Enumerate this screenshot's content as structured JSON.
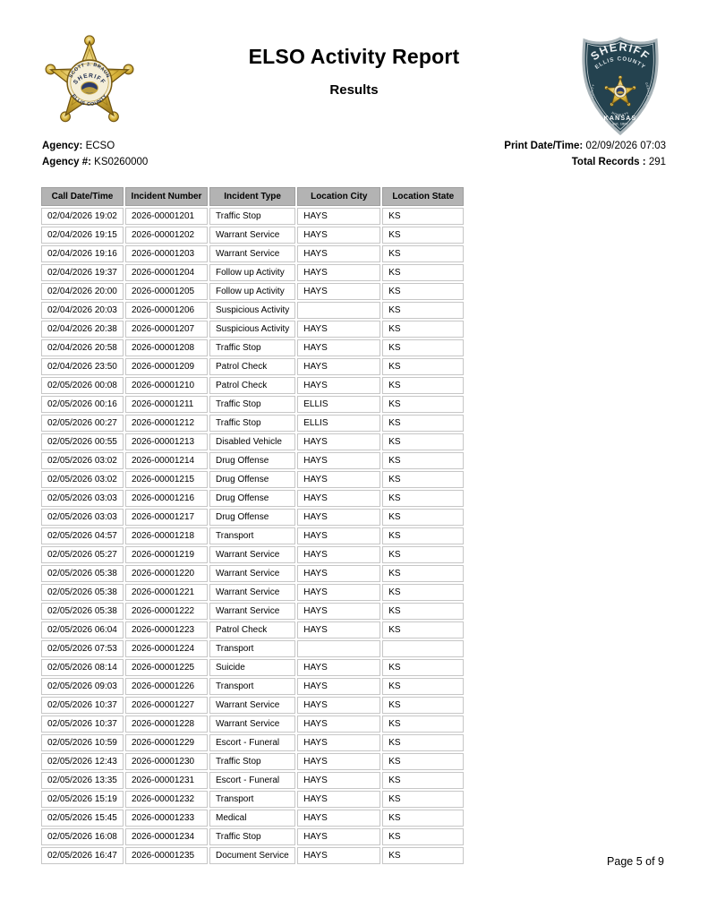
{
  "page": {
    "title": "ELSO Activity Report",
    "subtitle": "Results",
    "footer": "Page 5 of 9"
  },
  "header": {
    "agency_label": "Agency:",
    "agency_value": "ECSO",
    "agency_num_label": "Agency #:",
    "agency_num_value": "KS0260000",
    "print_label": "Print Date/Time:",
    "print_value": "02/09/2026 07:03",
    "total_label": "Total Records :",
    "total_value": "291"
  },
  "badges": {
    "star": {
      "top_text": "SCOTT J. BRAUN",
      "middle_text": "SHERIFF",
      "bottom_text": "ELLIS COUNTY"
    },
    "shield": {
      "top_text": "SHERIFF",
      "second_text": "ELLIS COUNTY",
      "left_text": "INTEGRITY",
      "right_text": "DEDICATION",
      "under_star_text": "HONESTY",
      "bottom_text": "KANSAS",
      "est_text": "Est. 1867"
    }
  },
  "colors": {
    "table_header_bg": "#b3b3b3",
    "cell_border": "#c6c6c6",
    "shield_navy": "#24424f",
    "star_gold": "#d9b43a"
  },
  "table": {
    "columns": [
      "Call Date/Time",
      "Incident Number",
      "Incident Type",
      "Location City",
      "Location State"
    ],
    "rows": [
      [
        "02/04/2026 19:02",
        "2026-00001201",
        "Traffic Stop",
        "HAYS",
        "KS"
      ],
      [
        "02/04/2026 19:15",
        "2026-00001202",
        "Warrant Service",
        "HAYS",
        "KS"
      ],
      [
        "02/04/2026 19:16",
        "2026-00001203",
        "Warrant Service",
        "HAYS",
        "KS"
      ],
      [
        "02/04/2026 19:37",
        "2026-00001204",
        "Follow up Activity",
        "HAYS",
        "KS"
      ],
      [
        "02/04/2026 20:00",
        "2026-00001205",
        "Follow up Activity",
        "HAYS",
        "KS"
      ],
      [
        "02/04/2026 20:03",
        "2026-00001206",
        "Suspicious Activity",
        "",
        "KS"
      ],
      [
        "02/04/2026 20:38",
        "2026-00001207",
        "Suspicious Activity",
        "HAYS",
        "KS"
      ],
      [
        "02/04/2026 20:58",
        "2026-00001208",
        "Traffic Stop",
        "HAYS",
        "KS"
      ],
      [
        "02/04/2026 23:50",
        "2026-00001209",
        "Patrol Check",
        "HAYS",
        "KS"
      ],
      [
        "02/05/2026 00:08",
        "2026-00001210",
        "Patrol Check",
        "HAYS",
        "KS"
      ],
      [
        "02/05/2026 00:16",
        "2026-00001211",
        "Traffic Stop",
        "ELLIS",
        "KS"
      ],
      [
        "02/05/2026 00:27",
        "2026-00001212",
        "Traffic Stop",
        "ELLIS",
        "KS"
      ],
      [
        "02/05/2026 00:55",
        "2026-00001213",
        "Disabled Vehicle",
        "HAYS",
        "KS"
      ],
      [
        "02/05/2026 03:02",
        "2026-00001214",
        "Drug Offense",
        "HAYS",
        "KS"
      ],
      [
        "02/05/2026 03:02",
        "2026-00001215",
        "Drug Offense",
        "HAYS",
        "KS"
      ],
      [
        "02/05/2026 03:03",
        "2026-00001216",
        "Drug Offense",
        "HAYS",
        "KS"
      ],
      [
        "02/05/2026 03:03",
        "2026-00001217",
        "Drug Offense",
        "HAYS",
        "KS"
      ],
      [
        "02/05/2026 04:57",
        "2026-00001218",
        "Transport",
        "HAYS",
        "KS"
      ],
      [
        "02/05/2026 05:27",
        "2026-00001219",
        "Warrant Service",
        "HAYS",
        "KS"
      ],
      [
        "02/05/2026 05:38",
        "2026-00001220",
        "Warrant Service",
        "HAYS",
        "KS"
      ],
      [
        "02/05/2026 05:38",
        "2026-00001221",
        "Warrant Service",
        "HAYS",
        "KS"
      ],
      [
        "02/05/2026 05:38",
        "2026-00001222",
        "Warrant Service",
        "HAYS",
        "KS"
      ],
      [
        "02/05/2026 06:04",
        "2026-00001223",
        "Patrol Check",
        "HAYS",
        "KS"
      ],
      [
        "02/05/2026 07:53",
        "2026-00001224",
        "Transport",
        "",
        ""
      ],
      [
        "02/05/2026 08:14",
        "2026-00001225",
        "Suicide",
        "HAYS",
        "KS"
      ],
      [
        "02/05/2026 09:03",
        "2026-00001226",
        "Transport",
        "HAYS",
        "KS"
      ],
      [
        "02/05/2026 10:37",
        "2026-00001227",
        "Warrant Service",
        "HAYS",
        "KS"
      ],
      [
        "02/05/2026 10:37",
        "2026-00001228",
        "Warrant Service",
        "HAYS",
        "KS"
      ],
      [
        "02/05/2026 10:59",
        "2026-00001229",
        "Escort - Funeral",
        "HAYS",
        "KS"
      ],
      [
        "02/05/2026 12:43",
        "2026-00001230",
        "Traffic Stop",
        "HAYS",
        "KS"
      ],
      [
        "02/05/2026 13:35",
        "2026-00001231",
        "Escort - Funeral",
        "HAYS",
        "KS"
      ],
      [
        "02/05/2026 15:19",
        "2026-00001232",
        "Transport",
        "HAYS",
        "KS"
      ],
      [
        "02/05/2026 15:45",
        "2026-00001233",
        "Medical",
        "HAYS",
        "KS"
      ],
      [
        "02/05/2026 16:08",
        "2026-00001234",
        "Traffic Stop",
        "HAYS",
        "KS"
      ],
      [
        "02/05/2026 16:47",
        "2026-00001235",
        "Document Service",
        "HAYS",
        "KS"
      ]
    ]
  }
}
